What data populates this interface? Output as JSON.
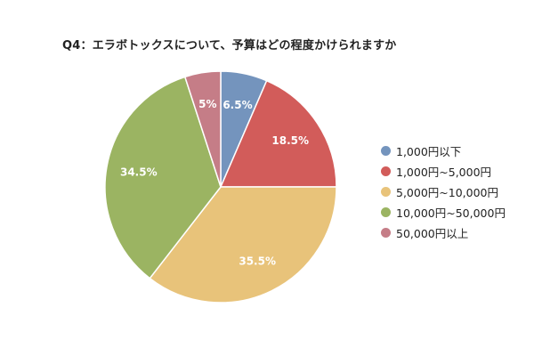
{
  "chart_data": {
    "type": "pie",
    "title": "Q4：エラボトックスについて、予算はどの程度かけられますか",
    "categories": [
      "1,000円以下",
      "1,000円~5,000円",
      "5,000円~10,000円",
      "10,000円~50,000円",
      "50,000円以上"
    ],
    "values": [
      6.5,
      18.5,
      35.5,
      34.5,
      5
    ],
    "data_labels": [
      "6.5%",
      "18.5%",
      "35.5%",
      "34.5%",
      "5%"
    ],
    "colors": [
      "#7494bd",
      "#d25c5a",
      "#e8c37a",
      "#9bb462",
      "#c57d87"
    ],
    "start_angle": "12 o'clock",
    "direction": "clockwise",
    "legend_position": "right"
  }
}
